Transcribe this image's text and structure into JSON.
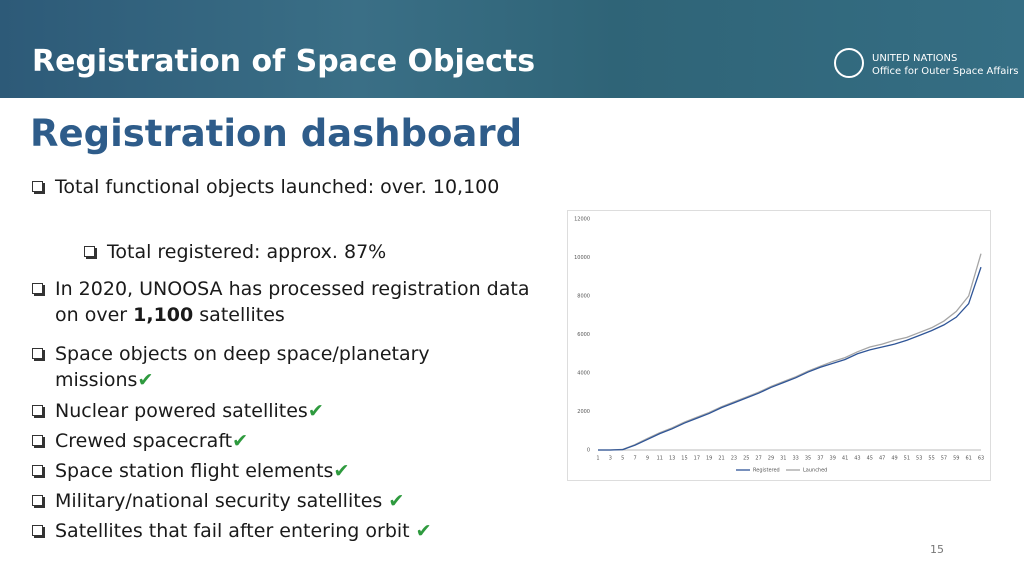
{
  "header": {
    "title": "Registration of Space Objects",
    "org_line1": "UNITED NATIONS",
    "org_line2": "Office for Outer Space Affairs"
  },
  "heading": "Registration dashboard",
  "bullets": [
    {
      "text": "Total functional objects launched: over. 10,100"
    },
    {
      "text": "Total registered:  approx. 87%"
    },
    {
      "text_before": "In 2020, UNOOSA has processed registration data on over ",
      "bold": "1,100",
      "text_after": " satellites"
    },
    {
      "text": "Space objects on deep space/planetary missions",
      "check": "✔"
    },
    {
      "text": "Nuclear powered satellites",
      "check": "✔"
    },
    {
      "text": "Crewed spacecraft",
      "check": "✔"
    },
    {
      "text": "Space station flight elements",
      "check": "✔"
    },
    {
      "text": "Military/national security satellites ",
      "check": "✔"
    },
    {
      "text": "Satellites that fail after entering orbit ",
      "check": "✔"
    }
  ],
  "page_number": "15",
  "chart_data": {
    "type": "line",
    "categories": [
      "1",
      "3",
      "5",
      "7",
      "9",
      "11",
      "13",
      "15",
      "17",
      "19",
      "21",
      "23",
      "25",
      "27",
      "29",
      "31",
      "33",
      "35",
      "37",
      "39",
      "41",
      "43",
      "45",
      "47",
      "49",
      "51",
      "53",
      "55",
      "57",
      "59",
      "61",
      "63"
    ],
    "series": [
      {
        "name": "Registered",
        "color": "#2f5597",
        "values": [
          0,
          0,
          20,
          250,
          550,
          850,
          1100,
          1400,
          1650,
          1900,
          2200,
          2450,
          2700,
          2950,
          3250,
          3500,
          3750,
          4050,
          4300,
          4500,
          4700,
          5000,
          5200,
          5350,
          5500,
          5700,
          5950,
          6200,
          6500,
          6900,
          7600,
          9500
        ]
      },
      {
        "name": "Launched",
        "color": "#a5a5a5",
        "values": [
          0,
          0,
          30,
          280,
          600,
          900,
          1150,
          1450,
          1700,
          1950,
          2250,
          2500,
          2750,
          3000,
          3300,
          3550,
          3800,
          4100,
          4350,
          4600,
          4800,
          5100,
          5350,
          5500,
          5700,
          5850,
          6100,
          6350,
          6700,
          7200,
          8000,
          10200
        ]
      }
    ],
    "ylim": [
      0,
      12000
    ],
    "yticks": [
      0,
      2000,
      4000,
      6000,
      8000,
      10000,
      12000
    ],
    "legend": "bottom"
  }
}
